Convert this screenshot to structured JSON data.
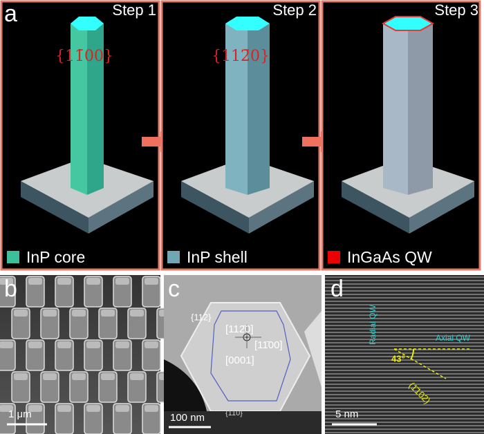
{
  "panel_a": {
    "label": "a",
    "steps": [
      "Step 1",
      "Step 2",
      "Step 3"
    ],
    "facets": [
      "{11̄00}",
      "{112̄0}"
    ],
    "legend": [
      "InP core",
      "InP shell",
      "InGaAs QW"
    ]
  },
  "panel_b": {
    "label": "b",
    "scale": "1 μm"
  },
  "panel_c": {
    "label": "c",
    "annotations": [
      "{112}",
      "[112̄0]",
      "[11̄00]",
      "[0001]",
      "{110}"
    ],
    "scale": "100 nm"
  },
  "panel_d": {
    "label": "d",
    "annotations": [
      "Radial QW",
      "Axial QW",
      "43°",
      "(1̄102)"
    ],
    "scale": "5 nm"
  }
}
